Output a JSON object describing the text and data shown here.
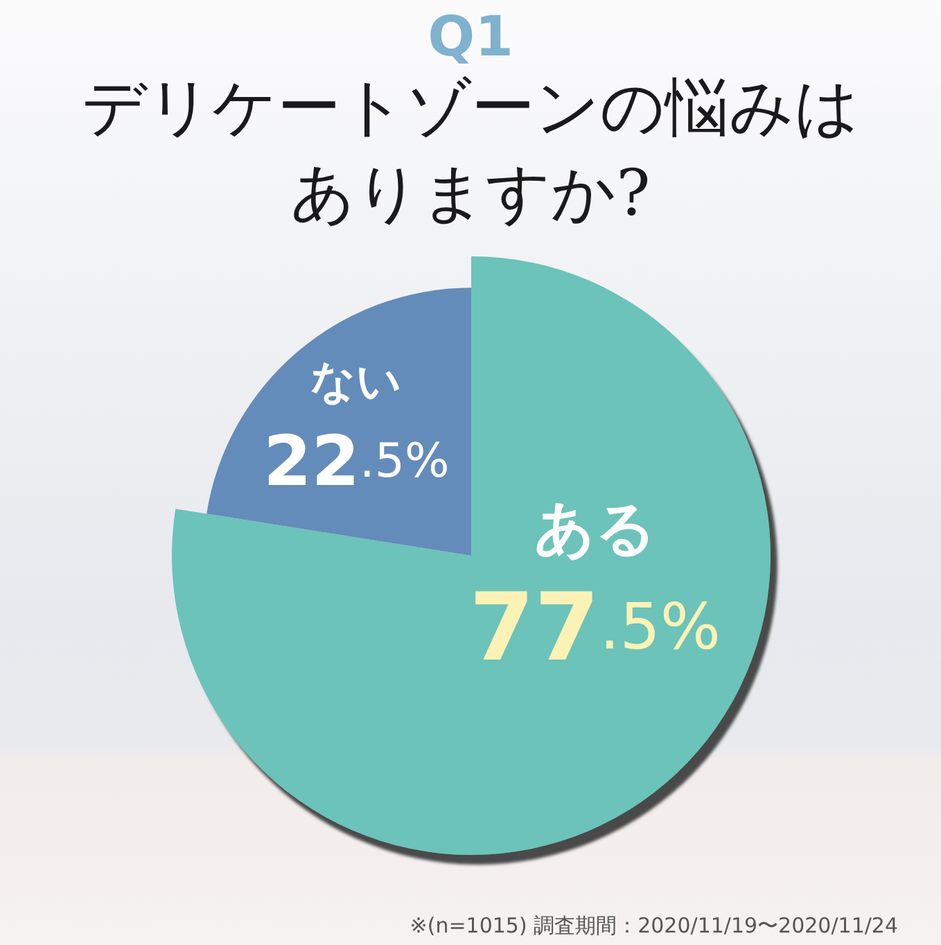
{
  "chart_data": {
    "type": "pie",
    "title": "デリケートゾーンの悩みはありますか?",
    "categories": [
      "ある",
      "ない"
    ],
    "values": [
      77.5,
      22.5
    ],
    "colors": [
      "#6cc3b9",
      "#648cba"
    ],
    "value_labels": [
      "77.5%",
      "22.5%"
    ],
    "annotations": [
      "Q1",
      "※(n=1015) 調査期間：2020/11/19〜2020/11/24"
    ]
  }
}
